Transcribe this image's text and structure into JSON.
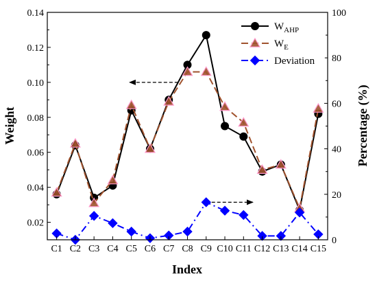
{
  "chart_data": {
    "type": "line",
    "xlabel": "Index",
    "ylabel_left": "Weight",
    "ylabel_right": "Percentage (%)",
    "categories": [
      "C1",
      "C2",
      "C3",
      "C4",
      "C5",
      "C6",
      "C7",
      "C8",
      "C9",
      "C10",
      "C11",
      "C12",
      "C13",
      "C14",
      "C15"
    ],
    "ylim_left": [
      0.01,
      0.14
    ],
    "yticks_left": [
      0.02,
      0.04,
      0.06,
      0.08,
      0.1,
      0.12,
      0.14
    ],
    "yticklabels_left": [
      "0.02",
      "0.04",
      "0.06",
      "0.08",
      "0.10",
      "0.12",
      "0.14"
    ],
    "ylim_right": [
      0,
      100
    ],
    "yticks_right": [
      0,
      20,
      40,
      60,
      80,
      100
    ],
    "yticklabels_right": [
      "0",
      "20",
      "40",
      "60",
      "80",
      "100"
    ],
    "grid": false,
    "legend_position": "top-right",
    "series": [
      {
        "name": "W",
        "name_sub": "AHP",
        "axis": "left",
        "color": "#000000",
        "marker": "circle",
        "line_style": "solid",
        "values": [
          0.036,
          0.064,
          0.034,
          0.041,
          0.084,
          0.062,
          0.09,
          0.11,
          0.127,
          0.075,
          0.069,
          0.049,
          0.053,
          0.027,
          0.082
        ]
      },
      {
        "name": "W",
        "name_sub": "E",
        "axis": "left",
        "color": "#a0522d",
        "marker": "triangle",
        "line_style": "dash",
        "values": [
          0.037,
          0.065,
          0.031,
          0.044,
          0.087,
          0.062,
          0.089,
          0.106,
          0.106,
          0.086,
          0.077,
          0.05,
          0.053,
          0.028,
          0.085
        ]
      },
      {
        "name": "Deviation",
        "axis": "right",
        "color": "#0000ff",
        "marker": "diamond",
        "line_style": "dashdot",
        "values": [
          2.8,
          0,
          10.5,
          7.3,
          3.6,
          0.7,
          1.9,
          3.6,
          16.5,
          12.8,
          10.9,
          1.7,
          1.7,
          12.0,
          2.4
        ]
      }
    ],
    "annotations": [
      {
        "type": "arrow",
        "direction": "left",
        "axis": "left",
        "from": [
          7.5,
          0.1
        ],
        "to": [
          4.9,
          0.1
        ]
      },
      {
        "type": "arrow",
        "direction": "right",
        "axis": "right",
        "from": [
          9.0,
          16.5
        ],
        "to": [
          11.5,
          16.5
        ]
      }
    ]
  }
}
